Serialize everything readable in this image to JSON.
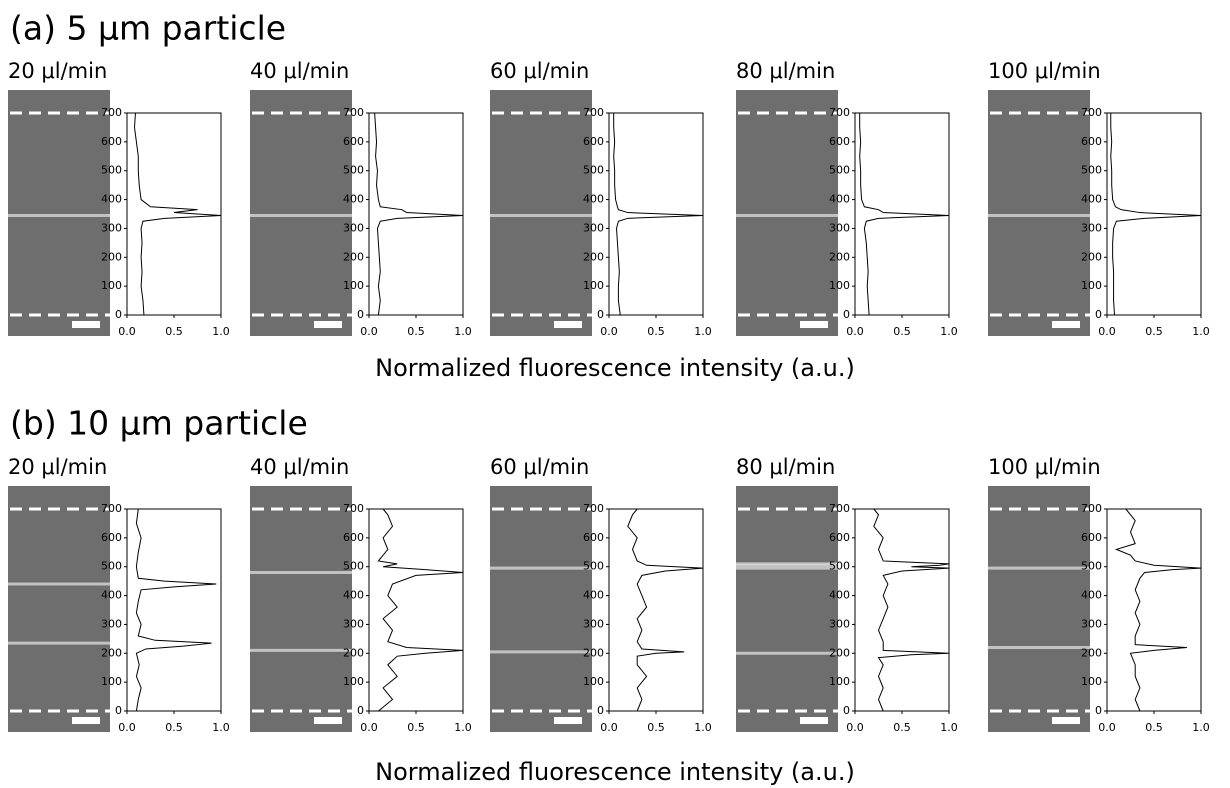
{
  "panels": [
    {
      "heading": "(a) 5 μm particle",
      "xlabel": "Normalized fluorescence intensity (a.u.)"
    },
    {
      "heading": "(b) 10 μm particle",
      "xlabel": "Normalized fluorescence intensity (a.u.)"
    }
  ],
  "chart_data": [
    {
      "type": "line",
      "title": "20 μl/min",
      "color": "#000000",
      "xlim": [
        0,
        1
      ],
      "xticks": [
        {
          "value": 0,
          "label": "0.0"
        },
        {
          "value": 0.5,
          "label": "0.5"
        },
        {
          "value": 1,
          "label": "1.0"
        }
      ],
      "ylim": [
        0,
        700
      ],
      "yticks": [
        0,
        100,
        200,
        300,
        400,
        500,
        600,
        700
      ],
      "y": [
        0,
        50,
        100,
        150,
        200,
        250,
        300,
        325,
        335,
        345,
        355,
        365,
        375,
        400,
        450,
        500,
        550,
        600,
        650,
        700
      ],
      "values": [
        0.18,
        0.17,
        0.15,
        0.16,
        0.15,
        0.16,
        0.15,
        0.17,
        0.4,
        1.0,
        0.5,
        0.75,
        0.25,
        0.15,
        0.13,
        0.12,
        0.12,
        0.1,
        0.08,
        0.09
      ]
    },
    {
      "type": "line",
      "title": "40 μl/min",
      "color": "#000000",
      "xlim": [
        0,
        1
      ],
      "xticks": [
        {
          "value": 0,
          "label": "0.0"
        },
        {
          "value": 0.5,
          "label": "0.5"
        },
        {
          "value": 1,
          "label": "1.0"
        }
      ],
      "ylim": [
        0,
        700
      ],
      "yticks": [
        0,
        100,
        200,
        300,
        400,
        500,
        600,
        700
      ],
      "y": [
        0,
        50,
        100,
        150,
        200,
        250,
        300,
        325,
        335,
        345,
        355,
        365,
        375,
        400,
        450,
        500,
        550,
        600,
        650,
        700
      ],
      "values": [
        0.1,
        0.12,
        0.1,
        0.12,
        0.11,
        0.1,
        0.09,
        0.12,
        0.3,
        1.0,
        0.4,
        0.35,
        0.12,
        0.1,
        0.08,
        0.09,
        0.07,
        0.08,
        0.07,
        0.06
      ]
    },
    {
      "type": "line",
      "title": "60 μl/min",
      "color": "#000000",
      "xlim": [
        0,
        1
      ],
      "xticks": [
        {
          "value": 0,
          "label": "0.0"
        },
        {
          "value": 0.5,
          "label": "0.5"
        },
        {
          "value": 1,
          "label": "1.0"
        }
      ],
      "ylim": [
        0,
        700
      ],
      "yticks": [
        0,
        100,
        200,
        300,
        400,
        500,
        600,
        700
      ],
      "y": [
        0,
        50,
        100,
        150,
        200,
        250,
        300,
        325,
        335,
        345,
        355,
        365,
        375,
        400,
        450,
        500,
        550,
        600,
        650,
        700
      ],
      "values": [
        0.12,
        0.1,
        0.1,
        0.11,
        0.1,
        0.09,
        0.08,
        0.1,
        0.2,
        1.0,
        0.2,
        0.1,
        0.09,
        0.07,
        0.06,
        0.06,
        0.05,
        0.06,
        0.05,
        0.05
      ]
    },
    {
      "type": "line",
      "title": "80 μl/min",
      "color": "#000000",
      "xlim": [
        0,
        1
      ],
      "xticks": [
        {
          "value": 0,
          "label": "0.0"
        },
        {
          "value": 0.5,
          "label": "0.5"
        },
        {
          "value": 1,
          "label": "1.0"
        }
      ],
      "ylim": [
        0,
        700
      ],
      "yticks": [
        0,
        100,
        200,
        300,
        400,
        500,
        600,
        700
      ],
      "y": [
        0,
        50,
        100,
        150,
        200,
        250,
        300,
        325,
        335,
        345,
        355,
        365,
        375,
        400,
        450,
        500,
        550,
        600,
        650,
        700
      ],
      "values": [
        0.15,
        0.14,
        0.13,
        0.14,
        0.13,
        0.12,
        0.1,
        0.12,
        0.25,
        1.0,
        0.3,
        0.25,
        0.1,
        0.07,
        0.06,
        0.06,
        0.05,
        0.06,
        0.05,
        0.05
      ]
    },
    {
      "type": "line",
      "title": "100 μl/min",
      "color": "#000000",
      "xlim": [
        0,
        1
      ],
      "xticks": [
        {
          "value": 0,
          "label": "0.0"
        },
        {
          "value": 0.5,
          "label": "0.5"
        },
        {
          "value": 1,
          "label": "1.0"
        }
      ],
      "ylim": [
        0,
        700
      ],
      "yticks": [
        0,
        100,
        200,
        300,
        400,
        500,
        600,
        700
      ],
      "y": [
        0,
        50,
        100,
        150,
        200,
        250,
        300,
        325,
        335,
        345,
        355,
        365,
        375,
        400,
        450,
        500,
        550,
        600,
        650,
        700
      ],
      "values": [
        0.08,
        0.07,
        0.07,
        0.07,
        0.06,
        0.06,
        0.07,
        0.1,
        0.4,
        1.0,
        0.35,
        0.15,
        0.09,
        0.06,
        0.05,
        0.05,
        0.04,
        0.05,
        0.04,
        0.04
      ]
    },
    {
      "type": "line",
      "title": "20 μl/min",
      "color": "#000000",
      "xlim": [
        0,
        1
      ],
      "xticks": [
        {
          "value": 0,
          "label": "0.0"
        },
        {
          "value": 0.5,
          "label": "0.5"
        },
        {
          "value": 1,
          "label": "1.0"
        }
      ],
      "ylim": [
        0,
        700
      ],
      "yticks": [
        0,
        100,
        200,
        300,
        400,
        500,
        600,
        700
      ],
      "y": [
        0,
        40,
        80,
        120,
        160,
        200,
        215,
        225,
        235,
        245,
        260,
        300,
        340,
        380,
        420,
        430,
        440,
        450,
        460,
        500,
        550,
        600,
        650,
        700
      ],
      "values": [
        0.1,
        0.12,
        0.15,
        0.1,
        0.13,
        0.1,
        0.2,
        0.6,
        0.9,
        0.3,
        0.12,
        0.15,
        0.1,
        0.12,
        0.15,
        0.5,
        0.95,
        0.4,
        0.12,
        0.1,
        0.12,
        0.15,
        0.1,
        0.12
      ]
    },
    {
      "type": "line",
      "title": "40 μl/min",
      "color": "#000000",
      "xlim": [
        0,
        1
      ],
      "xticks": [
        {
          "value": 0,
          "label": "0.0"
        },
        {
          "value": 0.5,
          "label": "0.5"
        },
        {
          "value": 1,
          "label": "1.0"
        }
      ],
      "ylim": [
        0,
        700
      ],
      "yticks": [
        0,
        100,
        200,
        300,
        400,
        500,
        600,
        700
      ],
      "y": [
        0,
        40,
        80,
        120,
        160,
        190,
        200,
        210,
        220,
        240,
        280,
        320,
        360,
        400,
        440,
        470,
        480,
        490,
        500,
        510,
        520,
        560,
        600,
        640,
        680,
        700
      ],
      "values": [
        0.1,
        0.25,
        0.15,
        0.3,
        0.2,
        0.3,
        0.6,
        1.0,
        0.4,
        0.2,
        0.25,
        0.15,
        0.3,
        0.2,
        0.25,
        0.5,
        1.0,
        0.6,
        0.15,
        0.3,
        0.1,
        0.2,
        0.15,
        0.25,
        0.2,
        0.15
      ]
    },
    {
      "type": "line",
      "title": "60 μl/min",
      "color": "#000000",
      "xlim": [
        0,
        1
      ],
      "xticks": [
        {
          "value": 0,
          "label": "0.0"
        },
        {
          "value": 0.5,
          "label": "0.5"
        },
        {
          "value": 1,
          "label": "1.0"
        }
      ],
      "ylim": [
        0,
        700
      ],
      "yticks": [
        0,
        100,
        200,
        300,
        400,
        500,
        600,
        700
      ],
      "y": [
        0,
        40,
        80,
        120,
        160,
        190,
        200,
        205,
        215,
        240,
        280,
        320,
        360,
        400,
        440,
        470,
        485,
        495,
        505,
        520,
        560,
        600,
        640,
        680,
        700
      ],
      "values": [
        0.3,
        0.35,
        0.3,
        0.4,
        0.3,
        0.3,
        0.5,
        0.8,
        0.35,
        0.3,
        0.35,
        0.3,
        0.4,
        0.35,
        0.3,
        0.35,
        0.6,
        1.0,
        0.4,
        0.3,
        0.25,
        0.3,
        0.2,
        0.25,
        0.3
      ]
    },
    {
      "type": "line",
      "title": "80 μl/min",
      "color": "#000000",
      "xlim": [
        0,
        1
      ],
      "xticks": [
        {
          "value": 0,
          "label": "0.0"
        },
        {
          "value": 0.5,
          "label": "0.5"
        },
        {
          "value": 1,
          "label": "1.0"
        }
      ],
      "ylim": [
        0,
        700
      ],
      "yticks": [
        0,
        100,
        200,
        300,
        400,
        500,
        600,
        700
      ],
      "y": [
        0,
        40,
        80,
        120,
        160,
        185,
        195,
        200,
        210,
        240,
        280,
        320,
        360,
        400,
        440,
        470,
        485,
        495,
        500,
        505,
        510,
        520,
        560,
        600,
        640,
        680,
        700
      ],
      "values": [
        0.3,
        0.25,
        0.3,
        0.25,
        0.3,
        0.25,
        0.6,
        1.0,
        0.3,
        0.3,
        0.25,
        0.3,
        0.35,
        0.3,
        0.35,
        0.3,
        0.5,
        1.0,
        0.6,
        0.9,
        1.0,
        0.3,
        0.25,
        0.3,
        0.2,
        0.25,
        0.2
      ]
    },
    {
      "type": "line",
      "title": "100 μl/min",
      "color": "#000000",
      "xlim": [
        0,
        1
      ],
      "xticks": [
        {
          "value": 0,
          "label": "0.0"
        },
        {
          "value": 0.5,
          "label": "0.5"
        },
        {
          "value": 1,
          "label": "1.0"
        }
      ],
      "ylim": [
        0,
        700
      ],
      "yticks": [
        0,
        100,
        200,
        300,
        400,
        500,
        600,
        700
      ],
      "y": [
        0,
        40,
        80,
        120,
        160,
        200,
        210,
        220,
        230,
        260,
        300,
        340,
        380,
        420,
        460,
        480,
        490,
        495,
        505,
        520,
        540,
        560,
        580,
        620,
        660,
        700
      ],
      "values": [
        0.35,
        0.3,
        0.35,
        0.3,
        0.3,
        0.25,
        0.5,
        0.85,
        0.3,
        0.3,
        0.35,
        0.3,
        0.35,
        0.3,
        0.35,
        0.4,
        0.7,
        1.0,
        0.5,
        0.3,
        0.25,
        0.1,
        0.3,
        0.25,
        0.3,
        0.2
      ]
    }
  ]
}
